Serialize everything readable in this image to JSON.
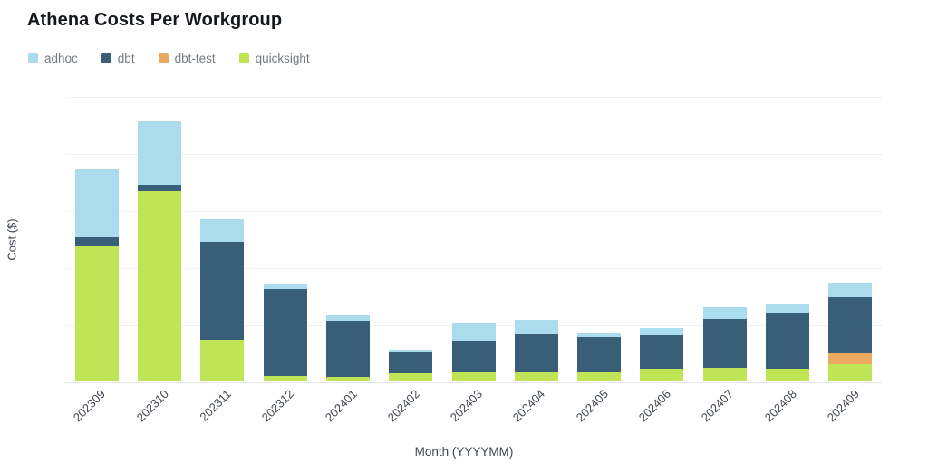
{
  "title": "Athena Costs Per Workgroup",
  "legend": {
    "items": [
      {
        "label": "adhoc",
        "color": "#abdcee"
      },
      {
        "label": "dbt",
        "color": "#385f77"
      },
      {
        "label": "dbt-test",
        "color": "#e9a95f"
      },
      {
        "label": "quicksight",
        "color": "#bfe456"
      }
    ]
  },
  "chart_data": {
    "type": "bar",
    "stacked": true,
    "title": "Athena Costs Per Workgroup",
    "xlabel": "Month (YYYYMM)",
    "ylabel": "Cost ($)",
    "categories": [
      "202309",
      "202310",
      "202311",
      "202312",
      "202401",
      "202402",
      "202403",
      "202404",
      "202405",
      "202406",
      "202407",
      "202408",
      "202409"
    ],
    "series": [
      {
        "name": "adhoc",
        "color": "#abdcee",
        "values": [
          23.8,
          22.5,
          7.9,
          1.9,
          1.9,
          0.6,
          6.0,
          5.1,
          1.3,
          2.5,
          4.1,
          3.2,
          5.1
        ]
      },
      {
        "name": "dbt",
        "color": "#385f77",
        "values": [
          2.9,
          2.2,
          34.3,
          30.5,
          19.7,
          7.6,
          10.8,
          13.0,
          12.4,
          11.7,
          17.1,
          19.7,
          19.7
        ]
      },
      {
        "name": "dbt-test",
        "color": "#e9a95f",
        "values": [
          0,
          0,
          0,
          0,
          0,
          0,
          0,
          0,
          0,
          0,
          0,
          0,
          3.8
        ]
      },
      {
        "name": "quicksight",
        "color": "#bfe456",
        "values": [
          47.6,
          66.7,
          14.6,
          1.9,
          1.6,
          2.9,
          3.5,
          3.5,
          3.2,
          4.4,
          4.8,
          4.4,
          6.0
        ]
      }
    ],
    "stack_order_bottom_to_top": [
      "quicksight",
      "dbt-test",
      "dbt",
      "adhoc"
    ],
    "ylim": [
      0,
      100
    ],
    "gridline_interval": 20,
    "y_tick_labels_visible": false,
    "grid": true,
    "legend_position": "top-left",
    "x_tick_rotation": -45,
    "note": "y axis shows gridlines only, no numeric tick labels; values estimated in gridline units (1 gridline interval = 20)"
  }
}
